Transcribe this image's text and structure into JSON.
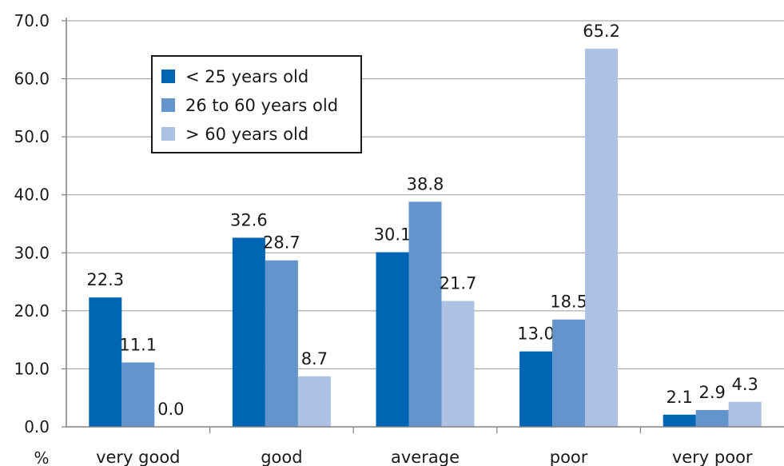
{
  "chart_data": {
    "type": "bar",
    "categories": [
      "very good",
      "good",
      "average",
      "poor",
      "very poor"
    ],
    "series": [
      {
        "name": "< 25 years old",
        "color": "#0066b3",
        "values": [
          22.3,
          32.6,
          30.1,
          13.0,
          2.1
        ]
      },
      {
        "name": "26 to 60 years old",
        "color": "#6394cc",
        "values": [
          11.1,
          28.7,
          38.8,
          18.5,
          2.9
        ]
      },
      {
        "name": "> 60 years old",
        "color": "#adc2e3",
        "values": [
          0.0,
          8.7,
          21.7,
          65.2,
          4.3
        ]
      }
    ],
    "ylim": [
      0,
      70
    ],
    "yticks": [
      "0.0",
      "10.0",
      "20.0",
      "30.0",
      "40.0",
      "50.0",
      "60.0",
      "70.0"
    ],
    "ylabel": "%",
    "grid": true,
    "legend_position": "top-left"
  }
}
